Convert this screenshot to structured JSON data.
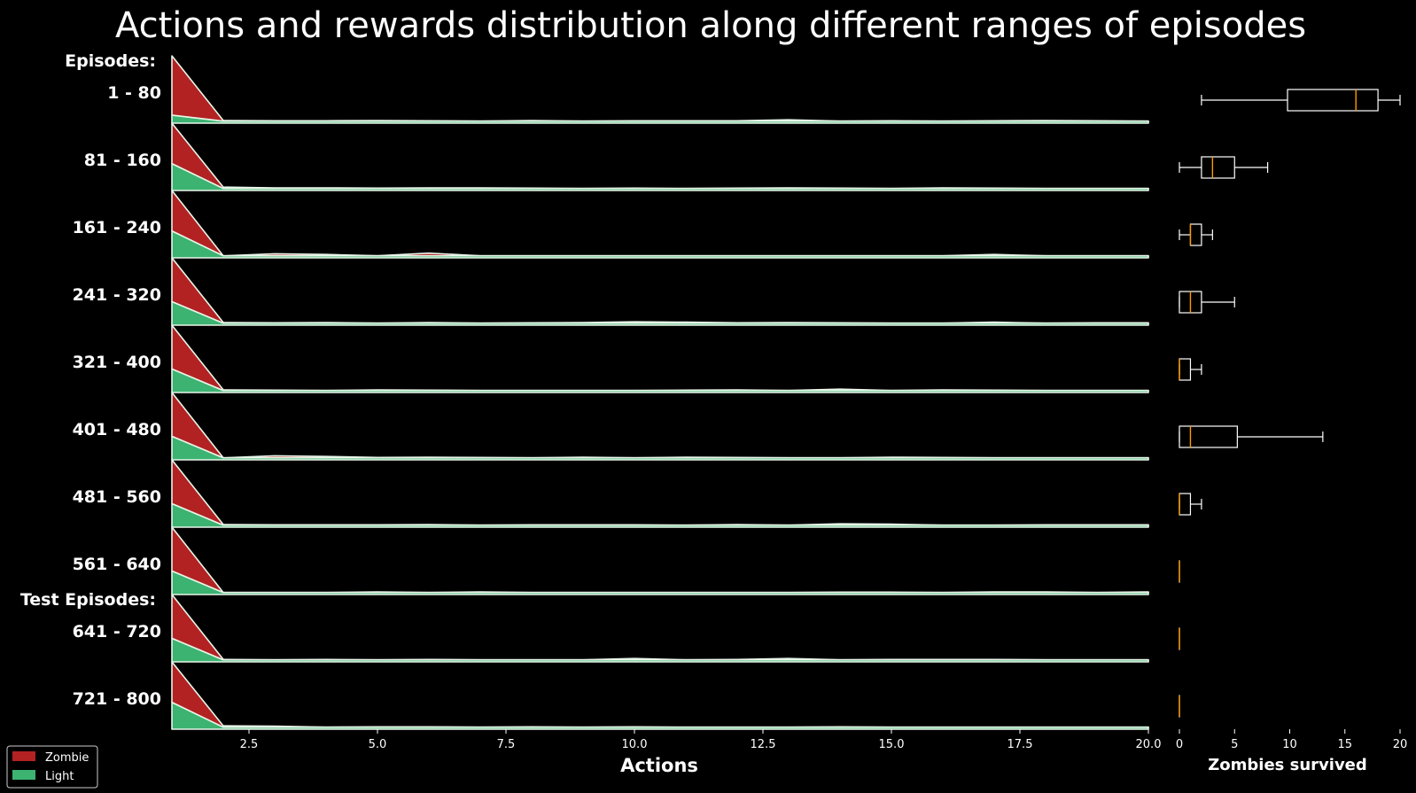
{
  "chart_data": {
    "type": "area",
    "title": "Actions and rewards distribution along different ranges of episodes",
    "xlabel": "Actions",
    "group_labels": [
      "Episodes:",
      "Test Episodes:"
    ],
    "xlim": [
      1,
      20
    ],
    "xticks": [
      "2.5",
      "5.0",
      "7.5",
      "10.0",
      "12.5",
      "15.0",
      "17.5",
      "20.0"
    ],
    "x": [
      1,
      2,
      3,
      4,
      5,
      6,
      7,
      8,
      9,
      10,
      11,
      12,
      13,
      14,
      15,
      16,
      17,
      18,
      19,
      20
    ],
    "colors": {
      "Zombie": "#b22222",
      "Light": "#3cb371",
      "edge": "#e8f5e9"
    },
    "legend": {
      "placement": "lower-left",
      "entries": [
        "Zombie",
        "Light"
      ]
    },
    "rows": [
      {
        "label": "1 - 80",
        "series": [
          {
            "name": "Light",
            "values": [
              0.12,
              0.03,
              0.03,
              0.03,
              0.03,
              0.03,
              0.03,
              0.03,
              0.03,
              0.03,
              0.03,
              0.03,
              0.03,
              0.03,
              0.03,
              0.03,
              0.03,
              0.03,
              0.03,
              0.03
            ]
          },
          {
            "name": "Zombie",
            "values": [
              0.88,
              0.01,
              0.005,
              0.005,
              0.01,
              0.005,
              0.0,
              0.01,
              0.0,
              0.005,
              0.005,
              0.005,
              0.02,
              0.0,
              0.005,
              0.0,
              0.005,
              0.01,
              0.005,
              0.0
            ]
          }
        ]
      },
      {
        "label": "81 - 160",
        "series": [
          {
            "name": "Light",
            "values": [
              0.4,
              0.03,
              0.03,
              0.03,
              0.03,
              0.03,
              0.03,
              0.03,
              0.03,
              0.03,
              0.03,
              0.03,
              0.03,
              0.03,
              0.03,
              0.03,
              0.03,
              0.03,
              0.03,
              0.03
            ]
          },
          {
            "name": "Zombie",
            "values": [
              0.6,
              0.02,
              0.01,
              0.01,
              0.005,
              0.01,
              0.01,
              0.005,
              0.0,
              0.005,
              0.0,
              0.005,
              0.01,
              0.005,
              0.0,
              0.01,
              0.005,
              0.0,
              0.0,
              0.0
            ]
          }
        ]
      },
      {
        "label": "161 - 240",
        "series": [
          {
            "name": "Light",
            "values": [
              0.4,
              0.03,
              0.03,
              0.03,
              0.03,
              0.03,
              0.03,
              0.03,
              0.03,
              0.03,
              0.03,
              0.03,
              0.03,
              0.03,
              0.03,
              0.03,
              0.03,
              0.03,
              0.03,
              0.03
            ]
          },
          {
            "name": "Zombie",
            "values": [
              0.6,
              0.0,
              0.03,
              0.02,
              0.0,
              0.04,
              0.0,
              0.0,
              0.0,
              0.0,
              0.0,
              0.0,
              0.0,
              0.0,
              0.0,
              0.0,
              0.02,
              0.0,
              0.0,
              0.0
            ]
          }
        ]
      },
      {
        "label": "241 - 320",
        "series": [
          {
            "name": "Light",
            "values": [
              0.35,
              0.03,
              0.03,
              0.03,
              0.03,
              0.03,
              0.03,
              0.03,
              0.03,
              0.03,
              0.03,
              0.03,
              0.03,
              0.03,
              0.03,
              0.03,
              0.03,
              0.03,
              0.03,
              0.03
            ]
          },
          {
            "name": "Zombie",
            "values": [
              0.65,
              0.01,
              0.005,
              0.01,
              0.0,
              0.01,
              0.0,
              0.005,
              0.01,
              0.02,
              0.015,
              0.005,
              0.01,
              0.005,
              0.0,
              0.0,
              0.015,
              0.0,
              0.005,
              0.005
            ]
          }
        ]
      },
      {
        "label": "321 - 400",
        "series": [
          {
            "name": "Light",
            "values": [
              0.35,
              0.03,
              0.03,
              0.03,
              0.03,
              0.03,
              0.03,
              0.03,
              0.03,
              0.03,
              0.03,
              0.03,
              0.03,
              0.03,
              0.03,
              0.03,
              0.03,
              0.03,
              0.03,
              0.03
            ]
          },
          {
            "name": "Zombie",
            "values": [
              0.65,
              0.01,
              0.005,
              0.0,
              0.01,
              0.005,
              0.0,
              0.0,
              0.0,
              0.0,
              0.005,
              0.01,
              0.0,
              0.02,
              0.0,
              0.01,
              0.005,
              0.0,
              0.0,
              0.0
            ]
          }
        ]
      },
      {
        "label": "401 - 480",
        "series": [
          {
            "name": "Light",
            "values": [
              0.35,
              0.03,
              0.03,
              0.03,
              0.03,
              0.03,
              0.03,
              0.03,
              0.03,
              0.03,
              0.03,
              0.03,
              0.03,
              0.03,
              0.03,
              0.03,
              0.03,
              0.03,
              0.03,
              0.03
            ]
          },
          {
            "name": "Zombie",
            "values": [
              0.65,
              0.0,
              0.03,
              0.02,
              0.005,
              0.01,
              0.005,
              0.0,
              0.01,
              0.0,
              0.01,
              0.005,
              0.0,
              0.0,
              0.01,
              0.005,
              0.0,
              0.0,
              0.0,
              0.0
            ]
          }
        ]
      },
      {
        "label": "481 - 560",
        "series": [
          {
            "name": "Light",
            "values": [
              0.35,
              0.03,
              0.03,
              0.03,
              0.03,
              0.03,
              0.03,
              0.03,
              0.03,
              0.03,
              0.03,
              0.03,
              0.03,
              0.03,
              0.03,
              0.03,
              0.03,
              0.03,
              0.03,
              0.03
            ]
          },
          {
            "name": "Zombie",
            "values": [
              0.65,
              0.01,
              0.005,
              0.005,
              0.005,
              0.01,
              0.0,
              0.005,
              0.005,
              0.005,
              0.0,
              0.01,
              0.0,
              0.02,
              0.015,
              0.0,
              0.0,
              0.005,
              0.005,
              0.005
            ]
          }
        ]
      },
      {
        "label": "561 - 640",
        "series": [
          {
            "name": "Light",
            "values": [
              0.35,
              0.03,
              0.03,
              0.03,
              0.03,
              0.03,
              0.03,
              0.03,
              0.03,
              0.03,
              0.03,
              0.03,
              0.03,
              0.03,
              0.03,
              0.03,
              0.03,
              0.03,
              0.03,
              0.03
            ]
          },
          {
            "name": "Zombie",
            "values": [
              0.65,
              0.0,
              0.0,
              0.0,
              0.01,
              0.0,
              0.01,
              0.0,
              0.0,
              0.0,
              0.0,
              0.0,
              0.0,
              0.005,
              0.005,
              0.0,
              0.01,
              0.01,
              0.0,
              0.01
            ]
          }
        ]
      },
      {
        "label": "641 - 720",
        "series": [
          {
            "name": "Light",
            "values": [
              0.35,
              0.03,
              0.03,
              0.03,
              0.03,
              0.03,
              0.03,
              0.03,
              0.03,
              0.03,
              0.03,
              0.03,
              0.03,
              0.03,
              0.03,
              0.03,
              0.03,
              0.03,
              0.03,
              0.03
            ]
          },
          {
            "name": "Zombie",
            "values": [
              0.65,
              0.005,
              0.0,
              0.005,
              0.0,
              0.005,
              0.0,
              0.0,
              0.0,
              0.02,
              0.0,
              0.005,
              0.02,
              0.0,
              0.005,
              0.005,
              0.005,
              0.0,
              0.0,
              0.0
            ]
          }
        ]
      },
      {
        "label": "721 - 800",
        "series": [
          {
            "name": "Light",
            "values": [
              0.4,
              0.03,
              0.03,
              0.03,
              0.03,
              0.03,
              0.03,
              0.03,
              0.03,
              0.03,
              0.03,
              0.03,
              0.03,
              0.03,
              0.03,
              0.03,
              0.03,
              0.03,
              0.03,
              0.03
            ]
          },
          {
            "name": "Zombie",
            "values": [
              0.6,
              0.02,
              0.015,
              0.0,
              0.005,
              0.005,
              0.0,
              0.005,
              0.0,
              0.005,
              0.0,
              0.0,
              0.0,
              0.005,
              0.0,
              0.0,
              0.0,
              0.0,
              0.0,
              0.0
            ]
          }
        ]
      }
    ],
    "boxplot": {
      "xlabel": "Zombies survived",
      "xlim": [
        0,
        20
      ],
      "xticks": [
        "0",
        "5",
        "10",
        "15",
        "20"
      ],
      "box_color": "#ffffff",
      "median_color": "#ff9900",
      "stats": [
        {
          "label": "1 - 80",
          "whislo": 2,
          "q1": 9.8,
          "med": 16,
          "q3": 18,
          "whishi": 20
        },
        {
          "label": "81 - 160",
          "whislo": 0,
          "q1": 2,
          "med": 3,
          "q3": 5,
          "whishi": 8
        },
        {
          "label": "161 - 240",
          "whislo": 0,
          "q1": 1,
          "med": 1,
          "q3": 2,
          "whishi": 3
        },
        {
          "label": "241 - 320",
          "whislo": 0,
          "q1": 0,
          "med": 1,
          "q3": 2,
          "whishi": 5
        },
        {
          "label": "321 - 400",
          "whislo": 0,
          "q1": 0,
          "med": 0,
          "q3": 1,
          "whishi": 2
        },
        {
          "label": "401 - 480",
          "whislo": 0,
          "q1": 0,
          "med": 1,
          "q3": 5.25,
          "whishi": 13
        },
        {
          "label": "481 - 560",
          "whislo": 0,
          "q1": 0,
          "med": 0,
          "q3": 1,
          "whishi": 2
        },
        {
          "label": "561 - 640",
          "whislo": 0,
          "q1": 0,
          "med": 0,
          "q3": 0,
          "whishi": 0
        },
        {
          "label": "641 - 720",
          "whislo": 0,
          "q1": 0,
          "med": 0,
          "q3": 0,
          "whishi": 0
        },
        {
          "label": "721 - 800",
          "whislo": 0,
          "q1": 0,
          "med": 0,
          "q3": 0,
          "whishi": 0
        }
      ]
    }
  }
}
